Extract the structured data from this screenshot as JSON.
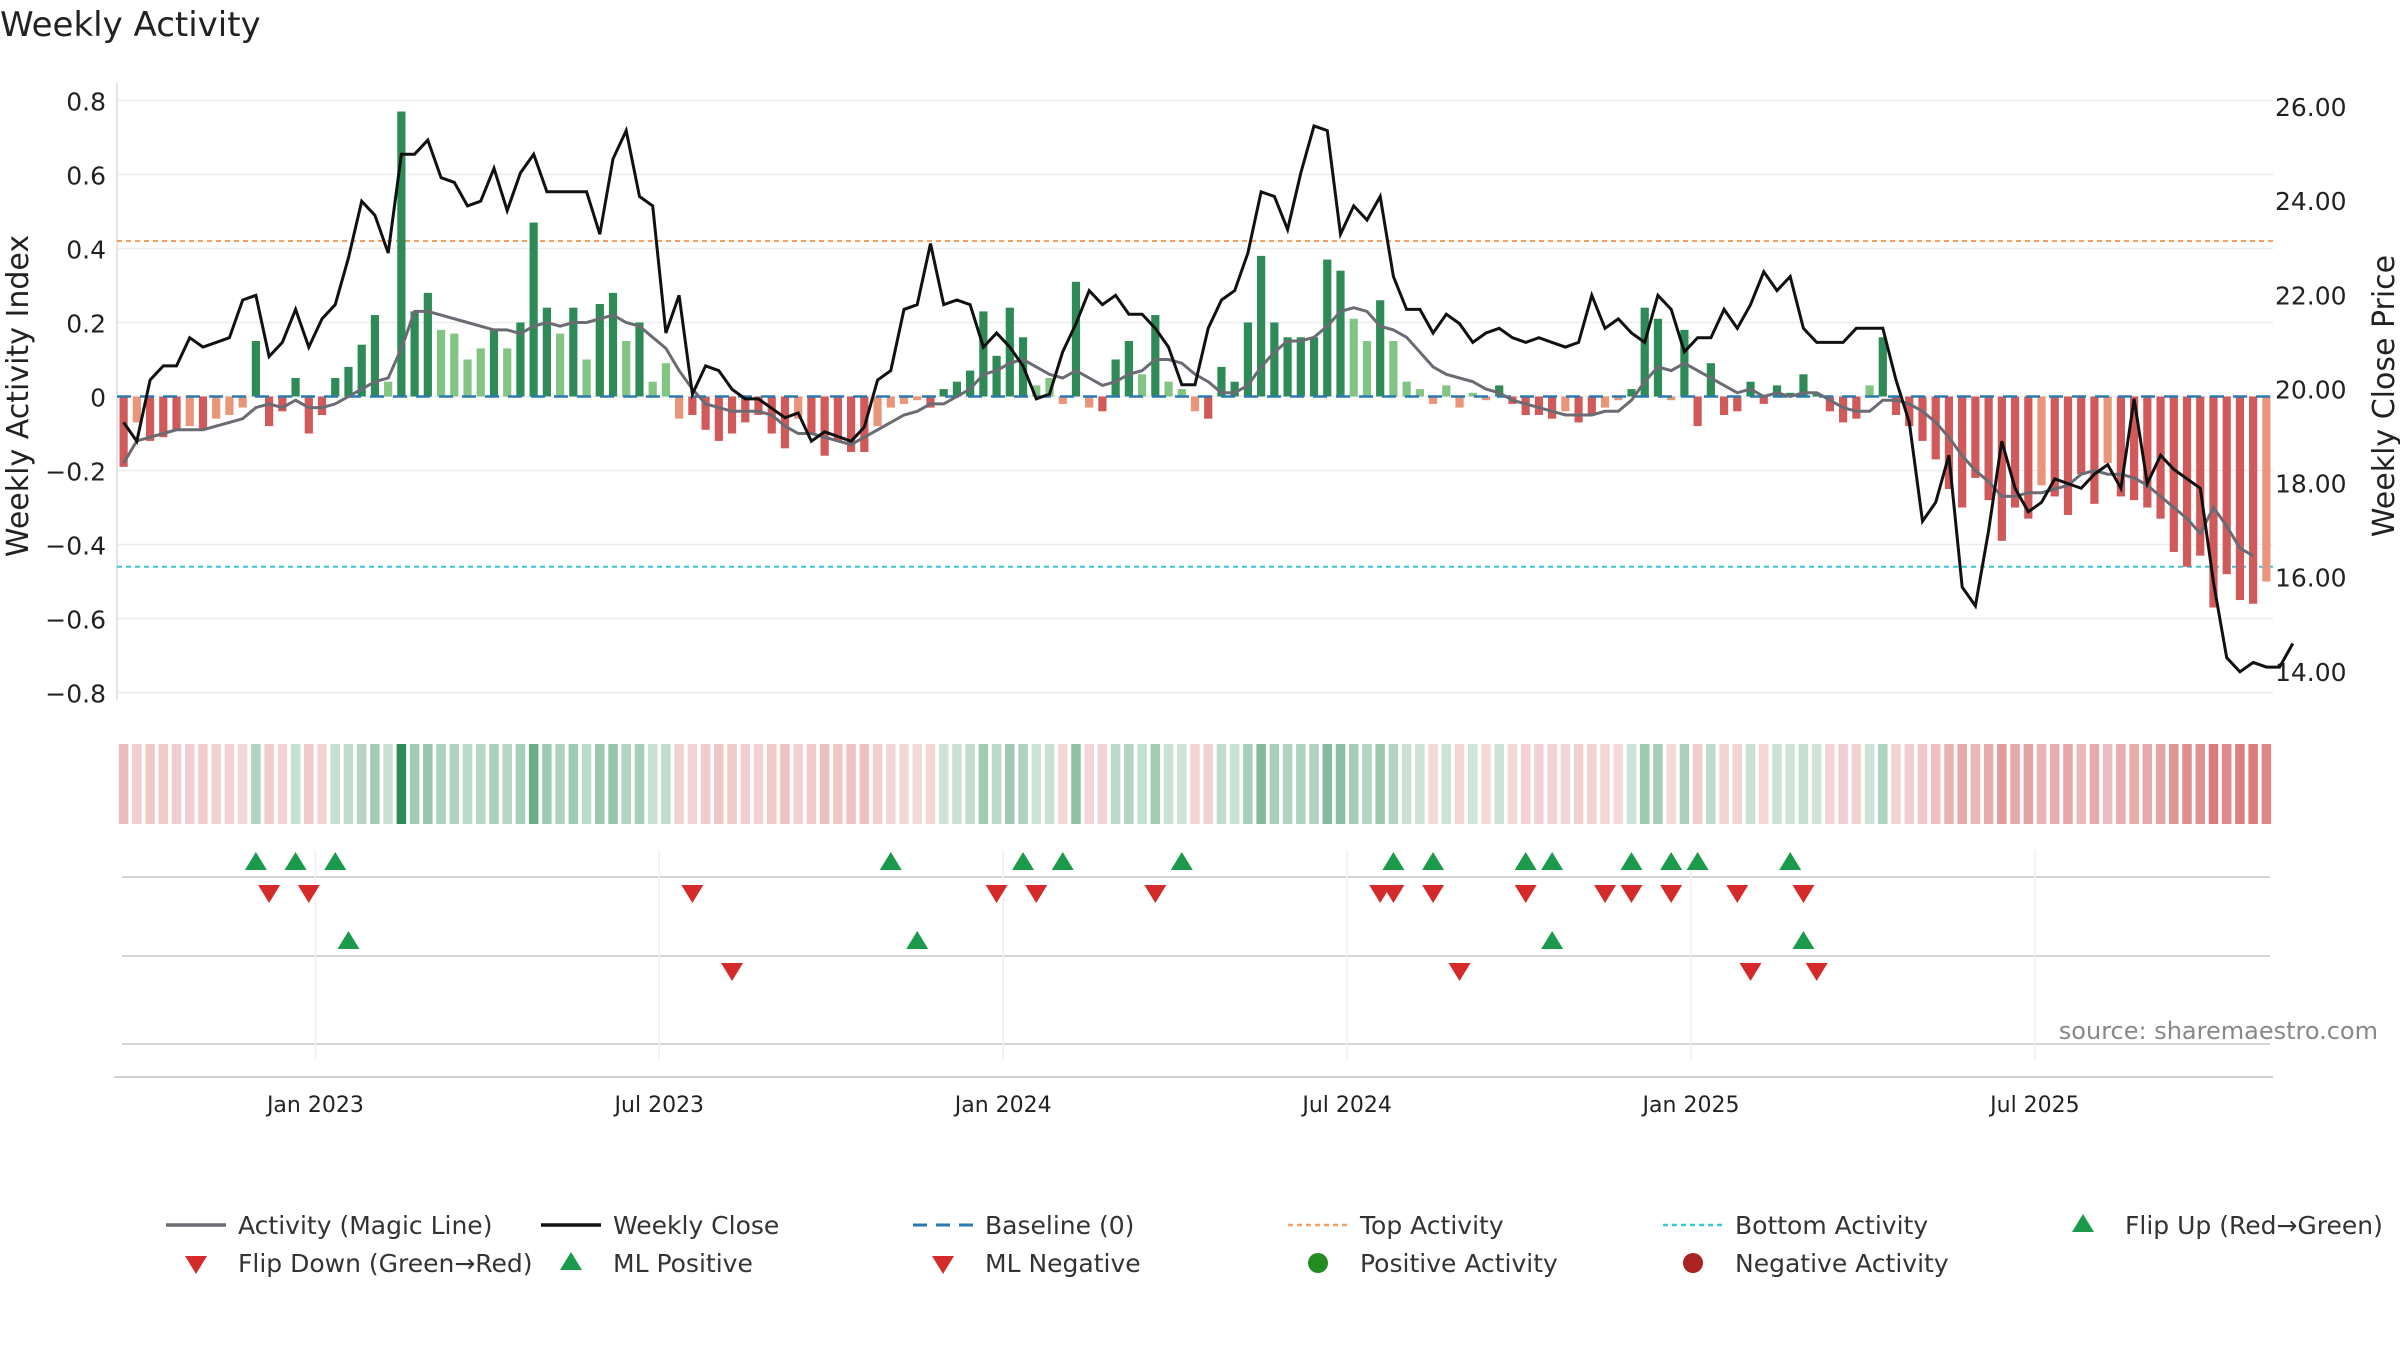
{
  "chart_data": {
    "type": "bar",
    "title": "Weekly Activity",
    "ylabel": "Weekly Activity Index",
    "y2label": "Weekly Close Price",
    "source": "source: sharemaestro.com",
    "ylim": [
      -0.82,
      0.82
    ],
    "y2lim": [
      13.4,
      26.3
    ],
    "yticks": [
      "0.8",
      "0.6",
      "0.4",
      "0.2",
      "0",
      "−0.2",
      "−0.4",
      "−0.6",
      "−0.8"
    ],
    "ytick_values": [
      0.8,
      0.6,
      0.4,
      0.2,
      0,
      -0.2,
      -0.4,
      -0.6,
      -0.8
    ],
    "y2ticks": [
      "26.00",
      "24.00",
      "22.00",
      "20.00",
      "18.00",
      "16.00",
      "14.00"
    ],
    "y2tick_values": [
      26,
      24,
      22,
      20,
      18,
      16,
      14
    ],
    "xticks": [
      "Jan 2023",
      "Jul 2023",
      "Jan 2024",
      "Jul 2024",
      "Jan 2025",
      "Jul 2025"
    ],
    "xtick_weeks": [
      15,
      41,
      67,
      93,
      119,
      145
    ],
    "top_activity": 0.42,
    "bottom_activity": -0.46,
    "activity": [
      -0.19,
      -0.07,
      -0.12,
      -0.11,
      -0.09,
      -0.08,
      -0.09,
      -0.06,
      -0.05,
      -0.03,
      0.15,
      -0.08,
      -0.04,
      0.05,
      -0.1,
      -0.05,
      0.05,
      0.08,
      0.14,
      0.22,
      0.04,
      0.77,
      0.23,
      0.28,
      0.18,
      0.17,
      0.1,
      0.13,
      0.18,
      0.13,
      0.2,
      0.47,
      0.24,
      0.17,
      0.24,
      0.1,
      0.25,
      0.28,
      0.15,
      0.2,
      0.04,
      0.09,
      -0.06,
      -0.05,
      -0.09,
      -0.12,
      -0.1,
      -0.07,
      -0.05,
      -0.1,
      -0.14,
      -0.06,
      -0.1,
      -0.16,
      -0.12,
      -0.15,
      -0.15,
      -0.08,
      -0.03,
      -0.02,
      -0.01,
      -0.03,
      0.02,
      0.04,
      0.07,
      0.23,
      0.11,
      0.24,
      0.16,
      0.03,
      0.05,
      -0.02,
      0.31,
      -0.03,
      -0.04,
      0.1,
      0.15,
      0.06,
      0.22,
      0.04,
      0.02,
      -0.04,
      -0.06,
      0.08,
      0.04,
      0.2,
      0.38,
      0.2,
      0.16,
      0.16,
      0.16,
      0.37,
      0.34,
      0.21,
      0.15,
      0.26,
      0.15,
      0.04,
      0.02,
      -0.02,
      0.03,
      -0.03,
      0.01,
      -0.01,
      0.03,
      -0.02,
      -0.05,
      -0.05,
      -0.06,
      -0.04,
      -0.07,
      -0.05,
      -0.03,
      -0.01,
      0.02,
      0.24,
      0.21,
      -0.01,
      0.18,
      -0.08,
      0.09,
      -0.05,
      -0.04,
      0.04,
      -0.02,
      0.03,
      0.01,
      0.06,
      0.01,
      -0.04,
      -0.07,
      -0.06,
      0.03,
      0.16,
      -0.05,
      -0.08,
      -0.12,
      -0.17,
      -0.25,
      -0.3,
      -0.22,
      -0.28,
      -0.39,
      -0.3,
      -0.33,
      -0.24,
      -0.27,
      -0.32,
      -0.21,
      -0.29,
      -0.18,
      -0.27,
      -0.28,
      -0.3,
      -0.33,
      -0.42,
      -0.46,
      -0.43,
      -0.57,
      -0.48,
      -0.55,
      -0.56,
      -0.5
    ],
    "activity_line": [
      -0.18,
      -0.12,
      -0.11,
      -0.1,
      -0.09,
      -0.09,
      -0.09,
      -0.08,
      -0.07,
      -0.06,
      -0.03,
      -0.02,
      -0.03,
      -0.01,
      -0.03,
      -0.03,
      -0.02,
      0,
      0.02,
      0.04,
      0.05,
      0.13,
      0.23,
      0.23,
      0.22,
      0.21,
      0.2,
      0.19,
      0.18,
      0.18,
      0.17,
      0.19,
      0.2,
      0.19,
      0.2,
      0.2,
      0.21,
      0.22,
      0.2,
      0.19,
      0.16,
      0.13,
      0.07,
      0.02,
      -0.02,
      -0.03,
      -0.04,
      -0.04,
      -0.04,
      -0.05,
      -0.08,
      -0.1,
      -0.1,
      -0.11,
      -0.12,
      -0.13,
      -0.11,
      -0.09,
      -0.07,
      -0.05,
      -0.04,
      -0.02,
      -0.02,
      0,
      0.02,
      0.06,
      0.07,
      0.09,
      0.1,
      0.08,
      0.06,
      0.05,
      0.07,
      0.05,
      0.03,
      0.04,
      0.06,
      0.07,
      0.1,
      0.1,
      0.09,
      0.06,
      0.04,
      0.01,
      0.01,
      0.03,
      0.08,
      0.12,
      0.15,
      0.15,
      0.16,
      0.19,
      0.23,
      0.24,
      0.23,
      0.19,
      0.18,
      0.16,
      0.12,
      0.08,
      0.06,
      0.05,
      0.04,
      0.02,
      0.01,
      -0.01,
      -0.02,
      -0.03,
      -0.04,
      -0.05,
      -0.05,
      -0.05,
      -0.04,
      -0.04,
      -0.01,
      0.04,
      0.08,
      0.07,
      0.09,
      0.07,
      0.05,
      0.03,
      0.01,
      0.02,
      0,
      0.01,
      0,
      0.01,
      0.01,
      -0.01,
      -0.03,
      -0.04,
      -0.04,
      -0.01,
      -0.01,
      -0.02,
      -0.04,
      -0.07,
      -0.11,
      -0.16,
      -0.2,
      -0.23,
      -0.27,
      -0.27,
      -0.26,
      -0.26,
      -0.25,
      -0.24,
      -0.21,
      -0.2,
      -0.21,
      -0.21,
      -0.22,
      -0.24,
      -0.27,
      -0.3,
      -0.33,
      -0.37,
      -0.3,
      -0.35,
      -0.41,
      -0.43
    ],
    "weekly_close": [
      19.3,
      18.9,
      20.2,
      20.5,
      20.5,
      21.1,
      20.9,
      21.0,
      21.1,
      21.9,
      22.0,
      20.7,
      21.0,
      21.7,
      20.9,
      21.5,
      21.8,
      22.8,
      24.0,
      23.7,
      22.9,
      25.0,
      25.0,
      25.3,
      24.5,
      24.4,
      23.9,
      24.0,
      24.7,
      23.8,
      24.6,
      25.0,
      24.2,
      24.2,
      24.2,
      24.2,
      23.3,
      24.9,
      25.5,
      24.1,
      23.9,
      21.2,
      22.0,
      19.9,
      20.5,
      20.4,
      20.0,
      19.8,
      19.8,
      19.6,
      19.4,
      19.5,
      18.9,
      19.1,
      19.0,
      18.9,
      19.2,
      20.2,
      20.4,
      21.7,
      21.8,
      23.1,
      21.8,
      21.9,
      21.8,
      20.9,
      21.2,
      20.9,
      20.5,
      19.8,
      19.9,
      20.8,
      21.4,
      22.1,
      21.8,
      22.0,
      21.6,
      21.6,
      21.3,
      20.9,
      20.1,
      20.1,
      21.3,
      21.9,
      22.1,
      22.9,
      24.2,
      24.1,
      23.4,
      24.6,
      25.6,
      25.5,
      23.3,
      23.9,
      23.6,
      24.1,
      22.4,
      21.7,
      21.7,
      21.2,
      21.6,
      21.4,
      21.0,
      21.2,
      21.3,
      21.1,
      21.0,
      21.1,
      21.0,
      20.9,
      21.0,
      22.0,
      21.3,
      21.5,
      21.2,
      21.0,
      22.0,
      21.7,
      20.8,
      21.1,
      21.1,
      21.7,
      21.3,
      21.8,
      22.5,
      22.1,
      22.4,
      21.3,
      21.0,
      21.0,
      21.0,
      21.3,
      21.3,
      21.3,
      20.2,
      19.3,
      17.2,
      17.6,
      18.6,
      15.8,
      15.4,
      17.0,
      18.9,
      17.9,
      17.4,
      17.6,
      18.1,
      18.0,
      17.9,
      18.2,
      18.4,
      17.9,
      19.8,
      18.0,
      18.6,
      18.3,
      18.1,
      17.9,
      15.9,
      14.3,
      14.0,
      14.2,
      14.1,
      14.1,
      14.6
    ],
    "flip_up_weeks": [
      10,
      13,
      16,
      58,
      68,
      71,
      80,
      96,
      99,
      106,
      108,
      114,
      117,
      119,
      126
    ],
    "flip_down_weeks": [
      11,
      14,
      43,
      66,
      69,
      78,
      95,
      96,
      99,
      106,
      112,
      114,
      117,
      122,
      127
    ],
    "ml_positive_weeks": [
      17,
      60,
      108,
      127
    ],
    "ml_negative_weeks": [
      46,
      101,
      123,
      128
    ],
    "legend": [
      "Activity (Magic Line)",
      "Weekly Close",
      "Baseline (0)",
      "Top Activity",
      "Bottom Activity",
      "Flip Up (Red→Green)",
      "Flip Down (Green→Red)",
      "ML Positive",
      "ML Negative",
      "Positive Activity",
      "Negative Activity"
    ],
    "legend_placement": "bottom",
    "grid": true
  },
  "colors": {
    "pos_dark": "#2e8b57",
    "pos_light": "#82c482",
    "neg_dark": "#d05a5a",
    "neg_light": "#e8957a",
    "magic_line": "#6b6b73",
    "close_line": "#111111",
    "baseline": "#2a7ab0",
    "top_line": "#f0a060",
    "bottom_line": "#3cc4d8",
    "flip_up": "#1a9a4a",
    "flip_down": "#d42a2a",
    "pos_dot": "#228b22",
    "neg_dot": "#aa2222"
  }
}
